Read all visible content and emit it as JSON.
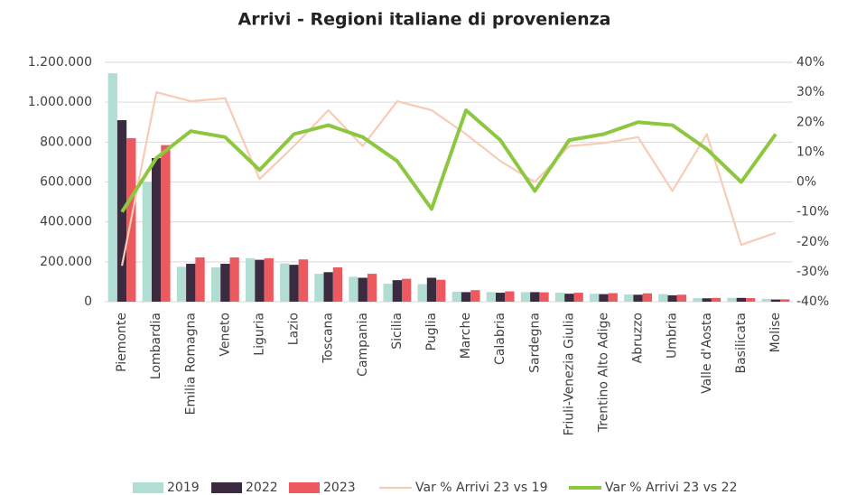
{
  "chart_data": {
    "type": "bar_line",
    "title": "Arrivi - Regioni italiane di provenienza",
    "categories": [
      "Piemonte",
      "Lombardia",
      "Emilia Romagna",
      "Veneto",
      "Liguria",
      "Lazio",
      "Toscana",
      "Campania",
      "Sicilia",
      "Puglia",
      "Marche",
      "Calabria",
      "Sardegna",
      "Friuli-Venezia Giulia",
      "Trentino Alto Adige",
      "Abruzzo",
      "Umbria",
      "Valle d'Aosta",
      "Basilicata",
      "Molise"
    ],
    "series": [
      {
        "name": "2019",
        "color": "#b2ddd3",
        "type": "bar",
        "values": [
          1145000,
          600000,
          175000,
          172000,
          218000,
          192000,
          140000,
          125000,
          90000,
          88000,
          50000,
          48000,
          48000,
          45000,
          40000,
          36000,
          38000,
          18000,
          19000,
          14000
        ]
      },
      {
        "name": "2022",
        "color": "#3b2a40",
        "type": "bar",
        "values": [
          910000,
          720000,
          190000,
          190000,
          210000,
          185000,
          148000,
          120000,
          108000,
          120000,
          48000,
          45000,
          48000,
          40000,
          38000,
          35000,
          32000,
          17000,
          19000,
          11000
        ]
      },
      {
        "name": "2023",
        "color": "#ec5a5f",
        "type": "bar",
        "values": [
          820000,
          785000,
          222000,
          222000,
          218000,
          212000,
          172000,
          140000,
          115000,
          110000,
          58000,
          52000,
          47000,
          45000,
          43000,
          42000,
          35000,
          19000,
          18000,
          12000
        ]
      },
      {
        "name": "Var % Arrivi 23 vs 19",
        "color": "#f8cbb5",
        "type": "line",
        "axis": "y2",
        "values": [
          -28,
          30,
          27,
          28,
          1,
          12,
          24,
          12,
          27,
          24,
          16,
          7,
          0,
          12,
          13,
          15,
          -3,
          16,
          -21,
          -17
        ]
      },
      {
        "name": "Var % Arrivi 23 vs 22",
        "color": "#8dc63f",
        "type": "line",
        "axis": "y2",
        "values": [
          -10,
          8,
          17,
          15,
          4,
          16,
          19,
          15,
          7,
          -9,
          24,
          14,
          -3,
          14,
          16,
          20,
          19,
          11,
          0,
          16
        ]
      }
    ],
    "ylim": [
      0,
      1200000
    ],
    "yticks": [
      0,
      {
        "value": 200000,
        "label": "200.000"
      },
      {
        "value": 400000,
        "label": "400.000"
      },
      {
        "value": 600000,
        "label": "600.000"
      },
      {
        "value": 800000,
        "label": "800.000"
      },
      {
        "value": 1000000,
        "label": "1.000.000"
      },
      {
        "value": 1200000,
        "label": "1.200.000"
      }
    ],
    "y2lim": [
      -40,
      40
    ],
    "y2ticks": [
      {
        "value": -40,
        "label": "-40%"
      },
      {
        "value": -30,
        "label": "-30%"
      },
      {
        "value": -20,
        "label": "-20%"
      },
      {
        "value": -10,
        "label": "-10%"
      },
      {
        "value": 0,
        "label": "0%"
      },
      {
        "value": 10,
        "label": "10%"
      },
      {
        "value": 20,
        "label": "20%"
      },
      {
        "value": 30,
        "label": "30%"
      },
      {
        "value": 40,
        "label": "40%"
      }
    ],
    "grid": true,
    "legend": "bottom"
  }
}
